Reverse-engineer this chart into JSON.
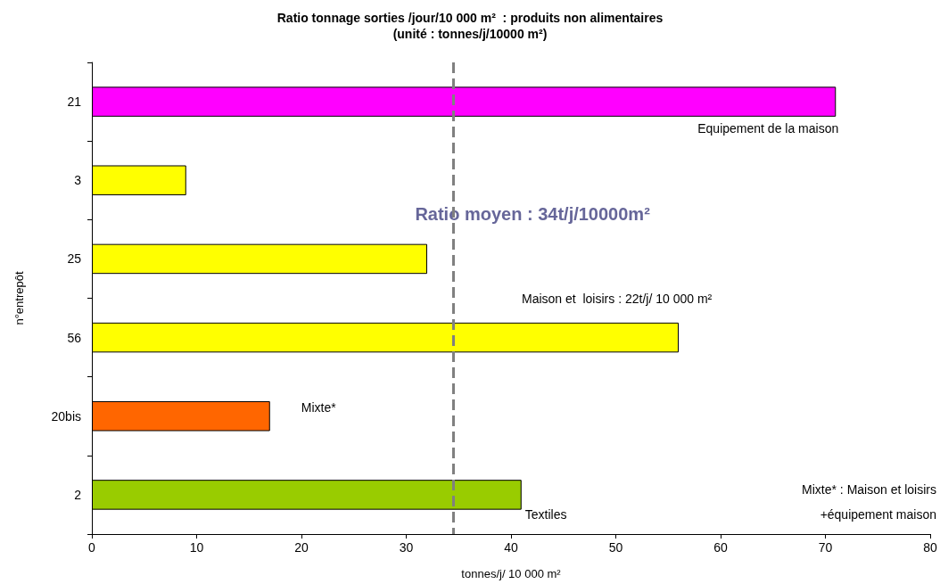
{
  "chart_data": {
    "type": "bar",
    "orientation": "horizontal",
    "title": "Ratio tonnage sorties /jour/10 000 m²  : produits non alimentaires",
    "subtitle": "(unité : tonnes/j/10000 m²)",
    "xlabel": "tonnes/j/ 10 000 m²",
    "ylabel": "n°entrepôt",
    "categories": [
      "21",
      "3",
      "25",
      "56",
      "20bis",
      "2"
    ],
    "values": [
      71,
      9,
      32,
      56,
      17,
      41
    ],
    "colors": [
      "#ff00ff",
      "#ffff00",
      "#ffff00",
      "#ffff00",
      "#ff6600",
      "#99cc00"
    ],
    "xlim": [
      0,
      80
    ],
    "xticks": [
      0,
      10,
      20,
      30,
      40,
      50,
      60,
      70,
      80
    ],
    "grid": false,
    "ref_lines": [
      {
        "axis": "x",
        "value": 34.5,
        "color": "#808080",
        "line_style": "dashed"
      }
    ],
    "annotations": [
      "Ratio moyen : 34t/j/10000m²",
      {
        "text": "Equipement de la maison",
        "x": 71,
        "y": "21"
      },
      "Maison et  loisirs : 22t/j/ 10 000 m²",
      {
        "text": "Mixte*",
        "x": 17,
        "y": "20bis"
      },
      {
        "text": "Textiles",
        "x": 41,
        "y": "2"
      },
      "Mixte* : Maison et loisirs\n+équipement maison"
    ]
  }
}
